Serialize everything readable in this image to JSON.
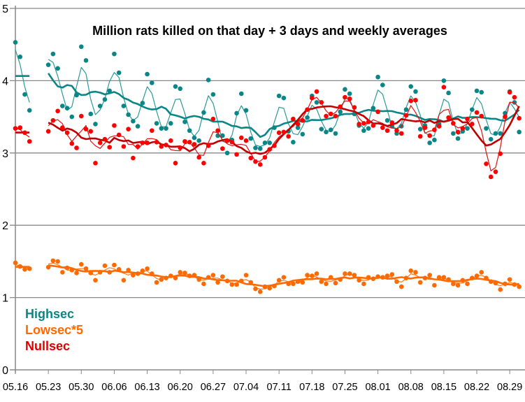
{
  "chart_data": {
    "type": "line",
    "title": "Million rats killed on that day + 3 days and weekly averages",
    "xlabel": "",
    "ylabel": "",
    "ylim": [
      0,
      5
    ],
    "yticks": [
      "0",
      "1",
      "2",
      "3",
      "4",
      "5"
    ],
    "grid": true,
    "legend_position": "bottom-left",
    "start_date": "05.16",
    "xtick_labels": [
      "05.16",
      "05.23",
      "05.30",
      "06.06",
      "06.13",
      "06.20",
      "06.27",
      "07.04",
      "07.11",
      "07.18",
      "07.25",
      "08.01",
      "08.08",
      "08.15",
      "08.22",
      "08.29"
    ],
    "series": [
      {
        "name": "Highsec",
        "color": "#0a8686",
        "values": [
          4.53,
          4.33,
          3.81,
          3.59,
          null,
          null,
          null,
          4.22,
          4.37,
          4.17,
          3.65,
          3.62,
          3.5,
          3.8,
          4.47,
          4.28,
          3.54,
          3.4,
          3.65,
          3.74,
          3.86,
          4.37,
          4.11,
          3.65,
          3.53,
          3.44,
          3.37,
          3.69,
          4.09,
          3.97,
          3.41,
          3.34,
          3.34,
          3.41,
          3.92,
          3.89,
          3.43,
          3.31,
          3.21,
          3.17,
          3.56,
          4.01,
          3.81,
          3.24,
          3.24,
          3.0,
          3.18,
          3.55,
          3.82,
          3.59,
          3.2,
          3.07,
          3.06,
          3.14,
          3.14,
          3.35,
          3.79,
          3.76,
          3.3,
          3.15,
          3.35,
          3.26,
          3.49,
          3.79,
          3.7,
          3.33,
          3.29,
          3.32,
          3.27,
          3.57,
          3.88,
          3.82,
          3.54,
          3.38,
          3.31,
          3.34,
          3.62,
          4.05,
          3.94,
          3.45,
          3.37,
          3.27,
          3.37,
          3.6,
          3.92,
          3.85,
          3.33,
          3.38,
          3.14,
          3.18,
          3.4,
          4.0,
          3.83,
          3.27,
          3.2,
          3.3,
          3.34,
          3.6,
          3.86,
          3.84,
          3.34,
          3.19,
          3.27,
          3.27,
          3.55,
          3.85,
          3.7,
          3.29
        ]
      },
      {
        "name": "Lowsec*5",
        "color": "#ff6a00",
        "values": [
          1.48,
          1.43,
          1.39,
          1.4,
          null,
          null,
          null,
          1.42,
          1.51,
          1.5,
          1.35,
          1.41,
          1.38,
          1.34,
          1.46,
          1.4,
          1.34,
          1.24,
          1.35,
          1.44,
          1.35,
          1.45,
          1.39,
          1.24,
          1.38,
          1.31,
          1.33,
          1.37,
          1.4,
          1.33,
          1.21,
          1.25,
          1.27,
          1.3,
          1.27,
          1.35,
          1.34,
          1.3,
          1.31,
          1.25,
          1.19,
          1.28,
          1.31,
          1.21,
          1.29,
          1.23,
          1.18,
          1.18,
          1.23,
          1.31,
          1.21,
          1.12,
          1.08,
          1.15,
          1.13,
          1.16,
          1.24,
          1.28,
          1.19,
          1.19,
          1.22,
          1.21,
          1.31,
          1.3,
          1.33,
          1.22,
          1.19,
          1.28,
          1.2,
          1.25,
          1.33,
          1.33,
          1.31,
          1.24,
          1.19,
          1.28,
          1.26,
          1.29,
          1.28,
          1.3,
          1.32,
          1.22,
          1.15,
          1.27,
          1.37,
          1.35,
          1.21,
          1.27,
          1.31,
          1.17,
          1.28,
          1.28,
          1.25,
          1.19,
          1.17,
          1.24,
          1.19,
          1.27,
          1.3,
          1.35,
          1.27,
          1.22,
          1.2,
          1.11,
          1.19,
          1.25,
          1.18,
          1.15
        ]
      },
      {
        "name": "Nullsec",
        "color": "#ff0000",
        "values": [
          3.34,
          3.35,
          3.28,
          3.16,
          null,
          null,
          null,
          3.3,
          3.45,
          3.58,
          3.35,
          3.28,
          3.13,
          3.07,
          3.51,
          3.33,
          3.3,
          2.86,
          3.14,
          3.19,
          3.08,
          3.38,
          3.25,
          3.09,
          3.33,
          2.93,
          3.09,
          3.14,
          3.14,
          3.31,
          3.15,
          3.09,
          3.11,
          3.17,
          2.86,
          3.07,
          3.16,
          3.15,
          3.12,
          2.94,
          2.86,
          3.1,
          3.47,
          3.31,
          3.06,
          3.17,
          3.15,
          2.98,
          3.21,
          3.17,
          2.93,
          2.88,
          2.84,
          2.94,
          3.05,
          3.1,
          3.28,
          3.29,
          3.23,
          3.47,
          3.4,
          3.45,
          3.6,
          3.76,
          3.85,
          3.7,
          3.51,
          3.54,
          3.51,
          3.64,
          3.77,
          3.75,
          3.63,
          3.4,
          3.41,
          3.43,
          3.38,
          3.57,
          3.35,
          3.31,
          3.42,
          3.31,
          3.27,
          3.52,
          3.72,
          3.73,
          3.23,
          3.35,
          3.24,
          3.32,
          3.37,
          3.91,
          3.49,
          3.41,
          3.29,
          3.34,
          3.47,
          3.4,
          3.56,
          3.51,
          2.85,
          2.67,
          2.74,
          2.99,
          3.5,
          3.84,
          3.77,
          3.48
        ]
      }
    ]
  }
}
